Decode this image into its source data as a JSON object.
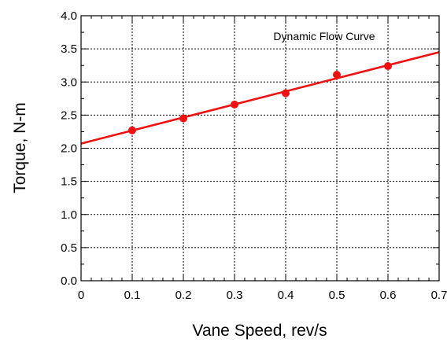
{
  "chart_data": {
    "type": "scatter",
    "title": "",
    "annotation": "Dynamic Flow Curve",
    "xlabel": "Vane Speed, rev/s",
    "ylabel": "Torque, N-m",
    "xlim": [
      0,
      0.7
    ],
    "ylim": [
      0,
      4.0
    ],
    "x_ticks": [
      "0",
      "0.1",
      "0.2",
      "0.3",
      "0.4",
      "0.5",
      "0.6",
      "0.7"
    ],
    "y_ticks": [
      "0.0",
      "0.5",
      "1.0",
      "1.5",
      "2.0",
      "2.5",
      "3.0",
      "3.5",
      "4.0"
    ],
    "x_tick_values": [
      0,
      0.1,
      0.2,
      0.3,
      0.4,
      0.5,
      0.6,
      0.7
    ],
    "y_tick_values": [
      0,
      0.5,
      1.0,
      1.5,
      2.0,
      2.5,
      3.0,
      3.5,
      4.0
    ],
    "grid": true,
    "series": [
      {
        "x": [
          0.1,
          0.2,
          0.3,
          0.4,
          0.5,
          0.6
        ],
        "y": [
          2.27,
          2.45,
          2.66,
          2.83,
          3.11,
          3.24
        ],
        "color": "#ee1111"
      }
    ],
    "fit_line": {
      "x": [
        0,
        0.7
      ],
      "y": [
        2.07,
        3.45
      ],
      "color": "#ee1111"
    }
  }
}
